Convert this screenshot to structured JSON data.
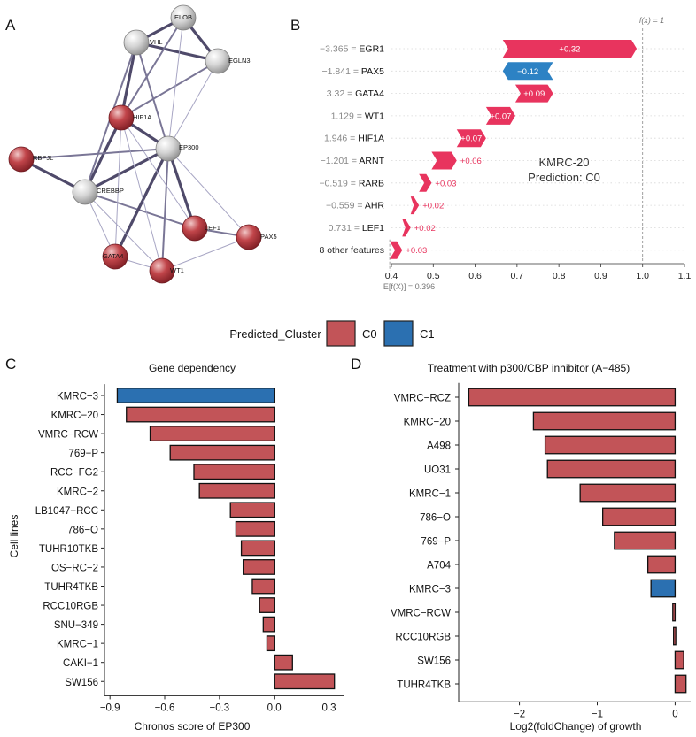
{
  "panels": {
    "a": "A",
    "b": "B",
    "c": "C",
    "d": "D"
  },
  "network": {
    "nodes": [
      {
        "id": "ELOB",
        "color": "#c9c9c9"
      },
      {
        "id": "VHL",
        "color": "#c9c9c9"
      },
      {
        "id": "EGLN3",
        "color": "#c9c9c9"
      },
      {
        "id": "HIF1A",
        "color": "#b8333a"
      },
      {
        "id": "EP300",
        "color": "#c9c9c9"
      },
      {
        "id": "RBPJL",
        "color": "#b8333a"
      },
      {
        "id": "CREBBP",
        "color": "#c9c9c9"
      },
      {
        "id": "LEF1",
        "color": "#b8333a"
      },
      {
        "id": "PAX5",
        "color": "#b8333a"
      },
      {
        "id": "GATA4",
        "color": "#b8333a"
      },
      {
        "id": "WT1",
        "color": "#b8333a"
      }
    ],
    "edges": [
      [
        "VHL",
        "ELOB",
        3
      ],
      [
        "VHL",
        "EGLN3",
        3
      ],
      [
        "ELOB",
        "EGLN3",
        3
      ],
      [
        "VHL",
        "HIF1A",
        3
      ],
      [
        "ELOB",
        "HIF1A",
        2
      ],
      [
        "EGLN3",
        "HIF1A",
        2
      ],
      [
        "VHL",
        "EP300",
        2
      ],
      [
        "ELOB",
        "EP300",
        1
      ],
      [
        "EGLN3",
        "EP300",
        1
      ],
      [
        "HIF1A",
        "EP300",
        3
      ],
      [
        "HIF1A",
        "CREBBP",
        3
      ],
      [
        "EP300",
        "CREBBP",
        3
      ],
      [
        "RBPJL",
        "CREBBP",
        3
      ],
      [
        "RBPJL",
        "EP300",
        2
      ],
      [
        "CREBBP",
        "LEF1",
        2
      ],
      [
        "EP300",
        "LEF1",
        3
      ],
      [
        "EP300",
        "GATA4",
        3
      ],
      [
        "EP300",
        "WT1",
        2
      ],
      [
        "CREBBP",
        "GATA4",
        1
      ],
      [
        "HIF1A",
        "LEF1",
        1
      ],
      [
        "HIF1A",
        "WT1",
        1
      ],
      [
        "LEF1",
        "PAX5",
        2
      ],
      [
        "WT1",
        "PAX5",
        1
      ],
      [
        "GATA4",
        "WT1",
        1
      ],
      [
        "CREBBP",
        "WT1",
        1
      ],
      [
        "VHL",
        "CREBBP",
        2
      ],
      [
        "HIF1A",
        "GATA4",
        1
      ],
      [
        "EP300",
        "PAX5",
        1
      ]
    ]
  },
  "chart_data": [
    {
      "type": "waterfall",
      "title": "KMRC-20",
      "subtitle": "Prediction: C0",
      "fx_label": "f(x) = 1",
      "fx_value": 1,
      "base_label": "E[f(X)] = 0.396",
      "base_value": 0.396,
      "xlim": [
        0.4,
        1.1
      ],
      "xticks": [
        "0.4",
        "0.5",
        "0.6",
        "0.7",
        "0.8",
        "0.9",
        "1.0",
        "1.1"
      ],
      "features": [
        {
          "name": "−3.365 = EGR1",
          "shap": 0.32,
          "label": "+0.32"
        },
        {
          "name": "−1.841 = PAX5",
          "shap": -0.12,
          "label": "−0.12"
        },
        {
          "name": "3.32 = GATA4",
          "shap": 0.09,
          "label": "+0.09"
        },
        {
          "name": "1.129 = WT1",
          "shap": 0.07,
          "label": "+0.07"
        },
        {
          "name": "1.946 = HIF1A",
          "shap": 0.07,
          "label": "+0.07"
        },
        {
          "name": "−1.201 = ARNT",
          "shap": 0.06,
          "label": "+0.06"
        },
        {
          "name": "−0.519 = RARB",
          "shap": 0.03,
          "label": "+0.03"
        },
        {
          "name": "−0.559 = AHR",
          "shap": 0.02,
          "label": "+0.02"
        },
        {
          "name": "0.731 = LEF1",
          "shap": 0.02,
          "label": "+0.02"
        },
        {
          "name": "8 other features",
          "shap": 0.03,
          "label": "+0.03"
        }
      ],
      "colors": {
        "positive": "#e8345e",
        "negative": "#2d82c4"
      }
    },
    {
      "type": "bar",
      "title": "Gene dependency",
      "xlabel": "Chronos score of EP300",
      "ylabel": "Cell lines",
      "xlim": [
        -0.93,
        0.38
      ],
      "xticks": [
        -0.9,
        -0.6,
        -0.3,
        0.0,
        0.3
      ],
      "xtick_labels": [
        "−0.9",
        "−0.6",
        "−0.3",
        "0.0",
        "0.3"
      ],
      "categories": [
        "KMRC−3",
        "KMRC−20",
        "VMRC−RCW",
        "769−P",
        "RCC−FG2",
        "KMRC−2",
        "LB1047−RCC",
        "786−O",
        "TUHR10TKB",
        "OS−RC−2",
        "TUHR4TKB",
        "RCC10RGB",
        "SNU−349",
        "KMRC−1",
        "CAKI−1",
        "SW156"
      ],
      "values": [
        -0.86,
        -0.81,
        -0.68,
        -0.57,
        -0.44,
        -0.41,
        -0.24,
        -0.21,
        -0.18,
        -0.17,
        -0.12,
        -0.08,
        -0.06,
        -0.04,
        0.1,
        0.33
      ],
      "clusters": [
        "C1",
        "C0",
        "C0",
        "C0",
        "C0",
        "C0",
        "C0",
        "C0",
        "C0",
        "C0",
        "C0",
        "C0",
        "C0",
        "C0",
        "C0",
        "C0"
      ]
    },
    {
      "type": "bar",
      "title": "Treatment with p300/CBP inhibitor (A−485)",
      "xlabel": "Log2(foldChange) of growth",
      "ylabel": "",
      "xlim": [
        -2.78,
        0.2
      ],
      "xticks": [
        -2,
        -1,
        0
      ],
      "xtick_labels": [
        "−2",
        "−1",
        "0"
      ],
      "categories": [
        "VMRC−RCZ",
        "KMRC−20",
        "A498",
        "UO31",
        "KMRC−1",
        "786−O",
        "769−P",
        "A704",
        "KMRC−3",
        "VMRC−RCW",
        "RCC10RGB",
        "SW156",
        "TUHR4TKB"
      ],
      "values": [
        -2.65,
        -1.82,
        -1.67,
        -1.64,
        -1.22,
        -0.93,
        -0.78,
        -0.35,
        -0.31,
        -0.03,
        -0.02,
        0.11,
        0.14
      ],
      "clusters": [
        "C0",
        "C0",
        "C0",
        "C0",
        "C0",
        "C0",
        "C0",
        "C0",
        "C1",
        "C0",
        "C0",
        "C0",
        "C0"
      ]
    }
  ],
  "legend": {
    "title": "Predicted_Cluster",
    "items": [
      {
        "label": "C0",
        "color": "#c25458"
      },
      {
        "label": "C1",
        "color": "#2b70b1"
      }
    ]
  }
}
